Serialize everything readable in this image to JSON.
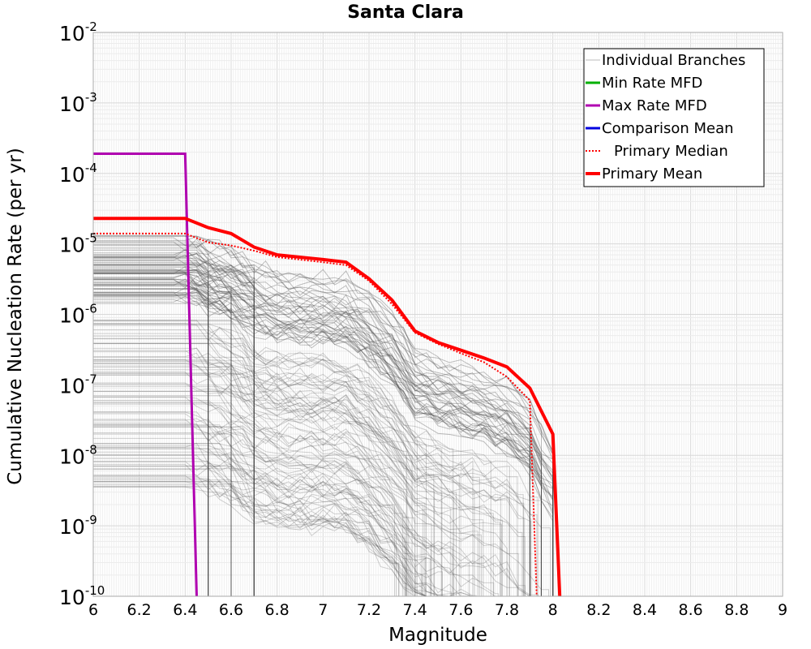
{
  "chart_data": {
    "type": "line",
    "title": "Santa Clara",
    "xlabel": "Magnitude",
    "ylabel": "Cumulative Nucleation Rate (per yr)",
    "xlim": [
      6,
      9
    ],
    "ylim": [
      1e-10,
      0.01
    ],
    "yscale": "log",
    "grid": true,
    "legend_position": "top-right",
    "x_ticks": [
      "6",
      "6.2",
      "6.4",
      "6.6",
      "6.8",
      "7",
      "7.2",
      "7.4",
      "7.6",
      "7.8",
      "8",
      "8.2",
      "8.4",
      "8.6",
      "8.8",
      "9"
    ],
    "y_ticks": [
      {
        "value": 0.01,
        "base": "10",
        "exp": "-2"
      },
      {
        "value": 0.001,
        "base": "10",
        "exp": "-3"
      },
      {
        "value": 0.0001,
        "base": "10",
        "exp": "-4"
      },
      {
        "value": 1e-05,
        "base": "10",
        "exp": "-5"
      },
      {
        "value": 1e-06,
        "base": "10",
        "exp": "-6"
      },
      {
        "value": 1e-07,
        "base": "10",
        "exp": "-7"
      },
      {
        "value": 1e-08,
        "base": "10",
        "exp": "-8"
      },
      {
        "value": 1e-09,
        "base": "10",
        "exp": "-9"
      },
      {
        "value": 1e-10,
        "base": "10",
        "exp": "-10"
      }
    ],
    "series": [
      {
        "name": "Individual Branches",
        "color": "#4a4a4a",
        "style": "thin",
        "description_count": "many"
      },
      {
        "name": "Min Rate MFD",
        "color": "#00b000",
        "style": "solid",
        "x": [],
        "y": []
      },
      {
        "name": "Max Rate MFD",
        "color": "#b000b0",
        "style": "solid",
        "x": [
          6.0,
          6.4,
          6.45
        ],
        "y": [
          0.00019,
          0.00019,
          1e-10
        ]
      },
      {
        "name": "Comparison Mean",
        "color": "#0000e0",
        "style": "solid",
        "x": [],
        "y": []
      },
      {
        "name": "Primary Median",
        "color": "#ff0000",
        "style": "dotted",
        "x": [
          6.0,
          6.4,
          6.5,
          6.6,
          6.7,
          6.8,
          7.0,
          7.1,
          7.2,
          7.3,
          7.4,
          7.5,
          7.6,
          7.7,
          7.8,
          7.9,
          7.93
        ],
        "y": [
          1.4e-05,
          1.4e-05,
          1.05e-05,
          9.5e-06,
          8e-06,
          6.5e-06,
          5.5e-06,
          5e-06,
          3e-06,
          1.4e-06,
          5.5e-07,
          3.8e-07,
          2.8e-07,
          2.1e-07,
          1.3e-07,
          6e-08,
          1e-10
        ]
      },
      {
        "name": "Primary Mean",
        "color": "#ff0000",
        "style": "thick",
        "x": [
          6.0,
          6.4,
          6.5,
          6.6,
          6.7,
          6.8,
          7.0,
          7.1,
          7.2,
          7.3,
          7.4,
          7.5,
          7.6,
          7.7,
          7.8,
          7.9,
          8.0,
          8.03
        ],
        "y": [
          2.3e-05,
          2.3e-05,
          1.7e-05,
          1.4e-05,
          9e-06,
          7e-06,
          6e-06,
          5.5e-06,
          3.2e-06,
          1.6e-06,
          5.8e-07,
          4e-07,
          3.1e-07,
          2.4e-07,
          1.8e-07,
          9e-08,
          2e-08,
          1e-10
        ]
      }
    ]
  }
}
